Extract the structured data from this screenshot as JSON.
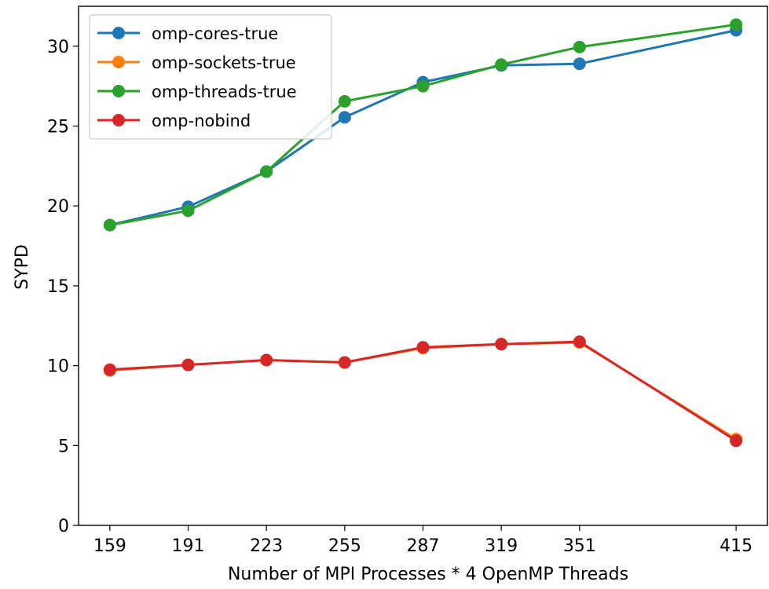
{
  "chart_data": {
    "type": "line",
    "title": "",
    "xlabel": "Number of MPI Processes * 4 OpenMP Threads",
    "ylabel": "SYPD",
    "x": [
      159,
      191,
      223,
      255,
      287,
      319,
      351,
      415
    ],
    "xticks": [
      "159",
      "191",
      "223",
      "255",
      "287",
      "319",
      "351",
      "415"
    ],
    "xlim": [
      146.2,
      427.8
    ],
    "ylim": [
      0,
      32.5
    ],
    "yticks": [
      0,
      5,
      10,
      15,
      20,
      25,
      30
    ],
    "grid": false,
    "legend_position": "top-left",
    "series": [
      {
        "name": "omp-cores-true",
        "color": "#1f77b4",
        "values": [
          18.8,
          19.95,
          22.15,
          25.55,
          27.75,
          28.8,
          28.9,
          31.0
        ]
      },
      {
        "name": "omp-sockets-true",
        "color": "#ff7f0e",
        "values": [
          9.7,
          10.05,
          10.35,
          10.2,
          11.1,
          11.35,
          11.45,
          5.4
        ]
      },
      {
        "name": "omp-threads-true",
        "color": "#2ca02c",
        "values": [
          18.8,
          19.7,
          22.15,
          26.55,
          27.5,
          28.85,
          29.95,
          31.35
        ]
      },
      {
        "name": "omp-nobind",
        "color": "#d62728",
        "values": [
          9.75,
          10.05,
          10.35,
          10.2,
          11.15,
          11.35,
          11.5,
          5.3
        ]
      }
    ]
  }
}
